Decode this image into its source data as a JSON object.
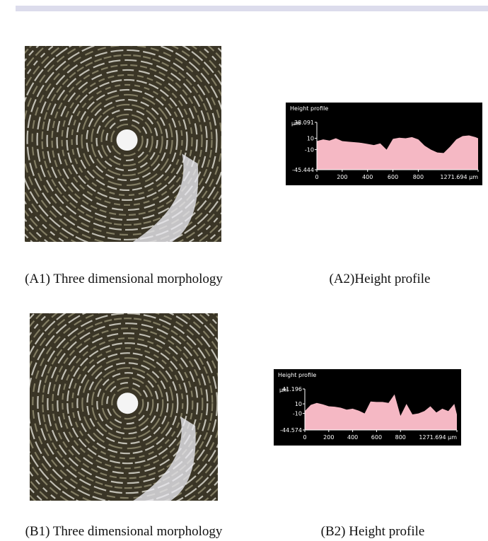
{
  "captions": {
    "a1": "(A1) Three dimensional morphology",
    "a2": "(A2)Height profile",
    "b1": "(B1) Three dimensional morphology",
    "b2": "(B2) Height profile"
  },
  "chart_data": [
    {
      "type": "area",
      "title": "Height profile",
      "y_label": "μm",
      "color": "#f5b8c4",
      "x": [
        0,
        50,
        100,
        150,
        200,
        250,
        300,
        350,
        400,
        450,
        500,
        550,
        600,
        650,
        700,
        750,
        800,
        850,
        900,
        950,
        1000,
        1050,
        1100,
        1150,
        1200,
        1250,
        1271.694
      ],
      "values": [
        5,
        8,
        6,
        10,
        5,
        4,
        3,
        2,
        0,
        -2,
        1,
        -10,
        9,
        11,
        10,
        12,
        8,
        -3,
        -10,
        -15,
        -16,
        -5,
        8,
        14,
        15,
        12,
        10
      ],
      "xlim": [
        0,
        1271.694
      ],
      "ylim": [
        -45.444,
        38.091
      ],
      "xticks": [
        0,
        200,
        400,
        600,
        800,
        {
          "value": 1271.694,
          "label": "1271.694 μm"
        }
      ],
      "yticks": [
        38.091,
        10,
        -10,
        -45.444
      ]
    },
    {
      "type": "area",
      "title": "Height profile",
      "y_label": "μm",
      "color": "#f5b8c4",
      "x": [
        0,
        50,
        100,
        150,
        200,
        250,
        300,
        350,
        400,
        450,
        500,
        550,
        600,
        650,
        700,
        750,
        800,
        850,
        900,
        950,
        1000,
        1050,
        1100,
        1150,
        1200,
        1250,
        1271.694
      ],
      "values": [
        -5,
        8,
        12,
        9,
        5,
        4,
        2,
        -2,
        0,
        -4,
        -10,
        15,
        14,
        14,
        12,
        30,
        -15,
        10,
        -12,
        -10,
        -5,
        5,
        -8,
        0,
        -5,
        10,
        -12
      ],
      "xlim": [
        0,
        1271.694
      ],
      "ylim": [
        -44.574,
        41.196
      ],
      "xticks": [
        0,
        200,
        400,
        600,
        800,
        {
          "value": 1271.694,
          "label": "1271.694 μm"
        }
      ],
      "yticks": [
        41.196,
        10,
        -10,
        -44.574
      ]
    }
  ]
}
